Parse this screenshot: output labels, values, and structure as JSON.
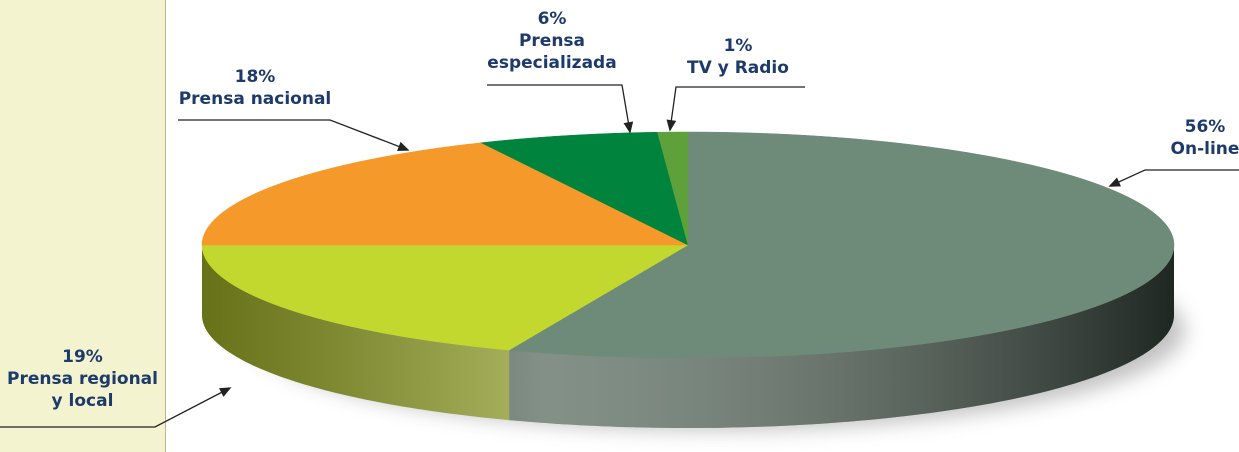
{
  "chart_data": {
    "type": "pie",
    "categories": [
      "On-line",
      "Prensa regional y local",
      "Prensa nacional",
      "Prensa especializada",
      "TV y Radio"
    ],
    "values": [
      56,
      19,
      18,
      6,
      1
    ],
    "value_labels": [
      "56%",
      "19%",
      "18%",
      "6%",
      "1%"
    ],
    "colors": [
      "#6e8a78",
      "#c3d82e",
      "#f4992a",
      "#00843d",
      "#5ea03a"
    ]
  }
}
